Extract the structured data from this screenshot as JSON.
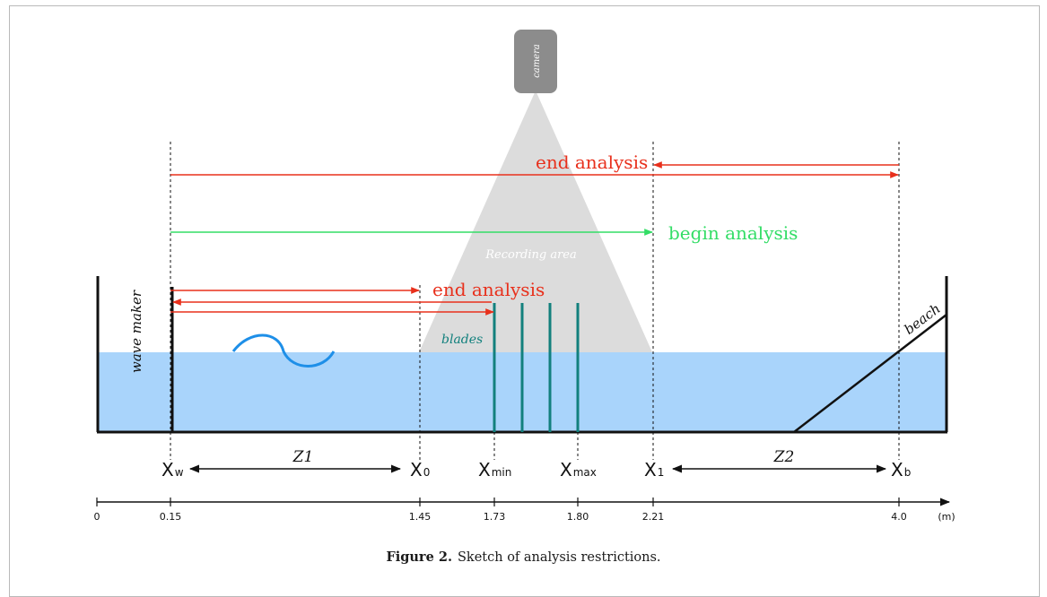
{
  "labels": {
    "camera": "camera",
    "recording_area": "Recording area",
    "end_analysis_top": "end analysis",
    "begin_analysis": "begin analysis",
    "end_analysis_mid": "end analysis",
    "blades": "blades",
    "wave_maker": "wave maker",
    "beach": "beach"
  },
  "markers": {
    "xw": {
      "main": "X",
      "sub": "w"
    },
    "x0": {
      "main": "X",
      "sub": "0"
    },
    "xmin": {
      "main": "X",
      "sub": "min"
    },
    "xmax": {
      "main": "X",
      "sub": "max"
    },
    "x1": {
      "main": "X",
      "sub": "1"
    },
    "xb": {
      "main": "X",
      "sub": "b"
    }
  },
  "zones": {
    "z1": "Z1",
    "z2": "Z2"
  },
  "axis": {
    "ticks": [
      "0",
      "0.15",
      "1.45",
      "1.73",
      "1.80",
      "2.21",
      "4.0"
    ],
    "unit": "(m)"
  },
  "caption": {
    "label": "Figure 2.",
    "text": "Sketch of analysis restrictions."
  },
  "colors": {
    "water": "#a9d4fb",
    "cone": "#dcdcdc",
    "camera": "#8c8c8c",
    "red": "#e8301c",
    "green": "#33dd66",
    "blade": "#12807d",
    "wave": "#1e8fe8"
  }
}
